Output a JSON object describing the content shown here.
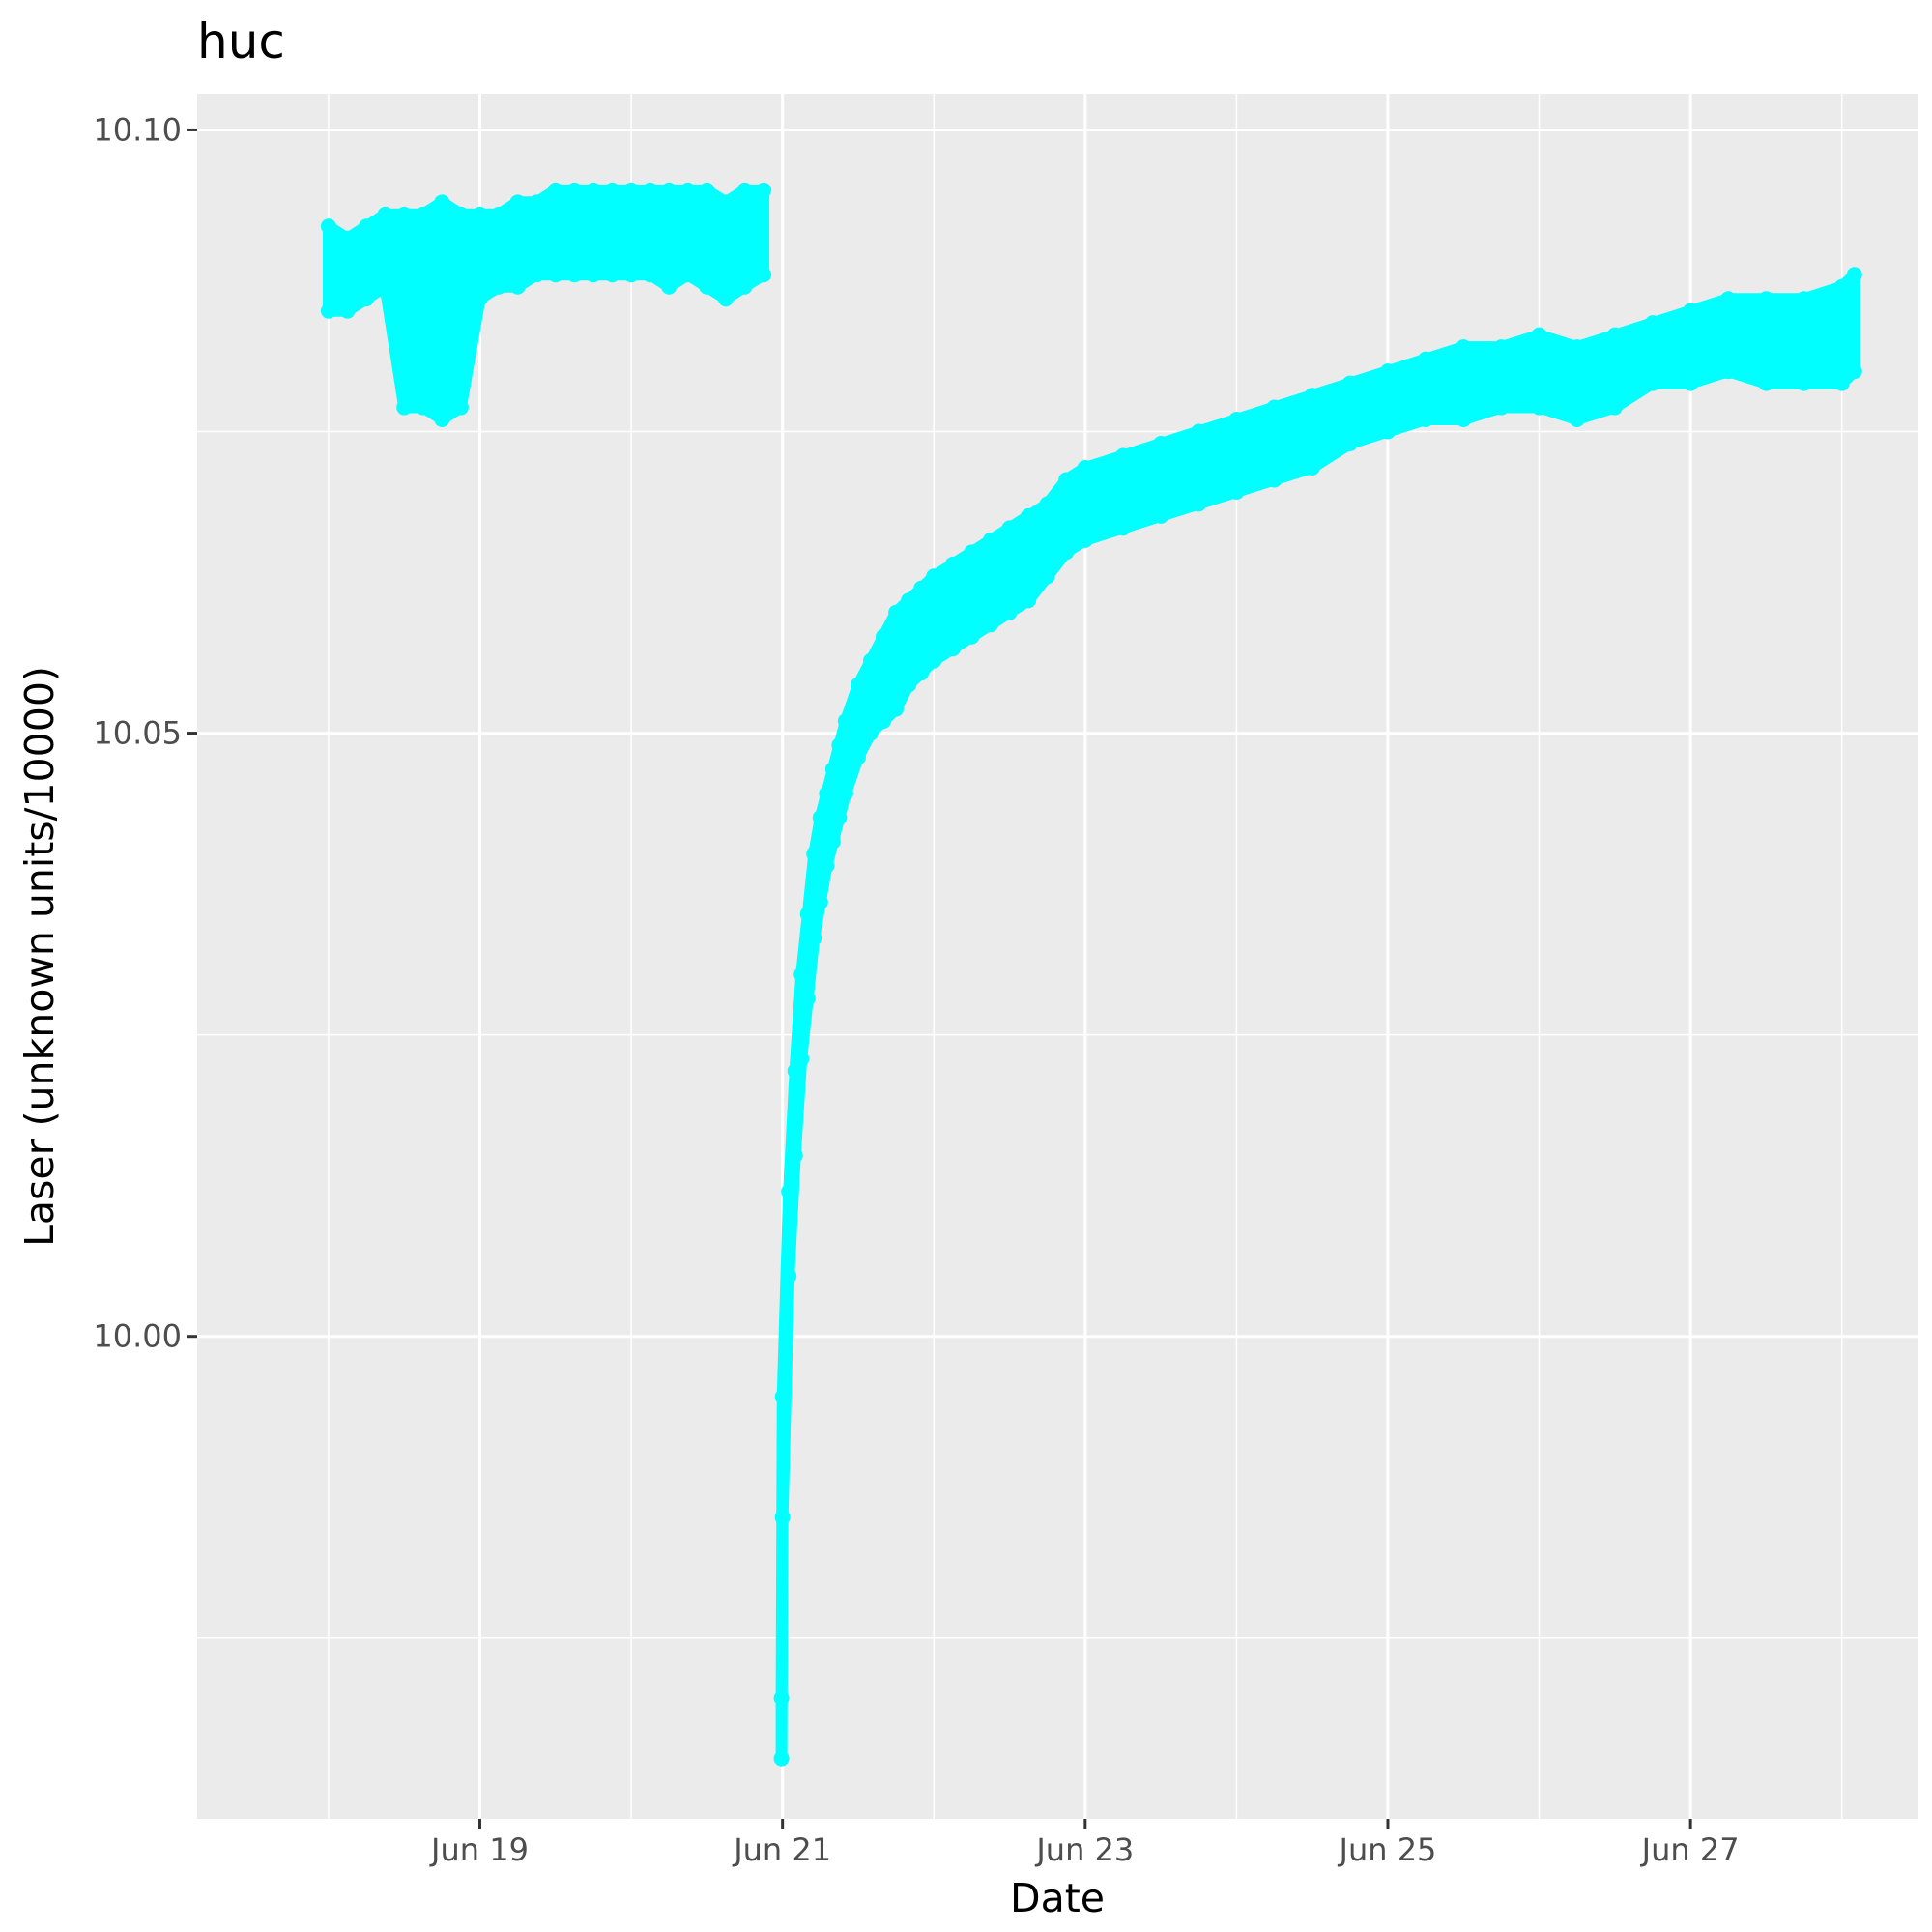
{
  "chart_data": {
    "type": "scatter",
    "title": "huc",
    "xlabel": "Date",
    "ylabel": "Laser (unknown units/10000)",
    "x_scale": "date",
    "xlim": [
      "2023-06-17 03:10",
      "2023-06-28 12:00"
    ],
    "ylim": [
      9.96,
      10.103
    ],
    "x_ticks": [
      "Jun 19",
      "Jun 21",
      "Jun 23",
      "Jun 25",
      "Jun 27"
    ],
    "x_tick_values": [
      "2023-06-19",
      "2023-06-21",
      "2023-06-23",
      "2023-06-25",
      "2023-06-27"
    ],
    "y_ticks": [
      "10.00",
      "10.05",
      "10.10"
    ],
    "y_tick_values": [
      10.0,
      10.05,
      10.1
    ],
    "grid": true,
    "legend": "none",
    "point_color": "#00FFFF",
    "panel_background": "#EBEBEB",
    "series": [
      {
        "segments": [
          {
            "x": [
              "2023-06-18 00:00",
              "2023-06-18 03:00",
              "2023-06-18 06:00",
              "2023-06-18 09:00",
              "2023-06-18 12:00",
              "2023-06-18 15:00",
              "2023-06-18 18:00",
              "2023-06-18 21:00",
              "2023-06-19 00:00",
              "2023-06-19 03:00",
              "2023-06-19 06:00",
              "2023-06-19 09:00",
              "2023-06-19 12:00",
              "2023-06-19 15:00",
              "2023-06-19 18:00",
              "2023-06-19 21:00",
              "2023-06-20 00:00",
              "2023-06-20 03:00",
              "2023-06-20 06:00",
              "2023-06-20 09:00",
              "2023-06-20 12:00",
              "2023-06-20 15:00",
              "2023-06-20 18:00",
              "2023-06-20 21:00"
            ],
            "y_low": [
              10.085,
              10.085,
              10.086,
              10.087,
              10.077,
              10.077,
              10.076,
              10.077,
              10.086,
              10.087,
              10.087,
              10.088,
              10.088,
              10.088,
              10.088,
              10.088,
              10.088,
              10.088,
              10.087,
              10.088,
              10.087,
              10.086,
              10.087,
              10.088
            ],
            "y_high": [
              10.092,
              10.091,
              10.092,
              10.093,
              10.093,
              10.093,
              10.094,
              10.093,
              10.093,
              10.093,
              10.094,
              10.094,
              10.095,
              10.095,
              10.095,
              10.095,
              10.095,
              10.095,
              10.095,
              10.095,
              10.095,
              10.094,
              10.095,
              10.095
            ]
          },
          {
            "x": [
              "2023-06-20 23:50",
              "2023-06-21 00:00",
              "2023-06-21 01:00",
              "2023-06-21 02:00",
              "2023-06-21 03:00",
              "2023-06-21 04:00",
              "2023-06-21 05:00",
              "2023-06-21 06:00",
              "2023-06-21 07:00",
              "2023-06-21 08:00",
              "2023-06-21 09:00",
              "2023-06-21 10:00",
              "2023-06-21 12:00",
              "2023-06-21 14:00",
              "2023-06-21 16:00",
              "2023-06-21 18:00",
              "2023-06-21 20:00",
              "2023-06-21 22:00",
              "2023-06-22 00:00",
              "2023-06-22 03:00",
              "2023-06-22 06:00",
              "2023-06-22 09:00",
              "2023-06-22 12:00",
              "2023-06-22 15:00",
              "2023-06-22 18:00",
              "2023-06-22 21:00",
              "2023-06-23 00:00",
              "2023-06-23 06:00",
              "2023-06-23 12:00",
              "2023-06-23 18:00",
              "2023-06-24 00:00",
              "2023-06-24 06:00",
              "2023-06-24 12:00",
              "2023-06-24 18:00",
              "2023-06-25 00:00",
              "2023-06-25 06:00",
              "2023-06-25 12:00",
              "2023-06-25 18:00",
              "2023-06-26 00:00",
              "2023-06-26 06:00",
              "2023-06-26 12:00",
              "2023-06-26 18:00",
              "2023-06-27 00:00",
              "2023-06-27 06:00",
              "2023-06-27 12:00",
              "2023-06-27 18:00",
              "2023-06-28 00:00",
              "2023-06-28 02:00"
            ],
            "y_low": [
              9.965,
              9.985,
              10.005,
              10.015,
              10.023,
              10.028,
              10.033,
              10.036,
              10.039,
              10.041,
              10.043,
              10.045,
              10.048,
              10.05,
              10.051,
              10.052,
              10.054,
              10.055,
              10.056,
              10.057,
              10.058,
              10.059,
              10.06,
              10.061,
              10.063,
              10.065,
              10.066,
              10.067,
              10.068,
              10.069,
              10.07,
              10.071,
              10.072,
              10.074,
              10.075,
              10.076,
              10.076,
              10.077,
              10.077,
              10.076,
              10.077,
              10.079,
              10.079,
              10.08,
              10.079,
              10.079,
              10.079,
              10.08
            ],
            "y_high": [
              9.97,
              9.995,
              10.012,
              10.022,
              10.03,
              10.035,
              10.04,
              10.043,
              10.045,
              10.047,
              10.049,
              10.051,
              10.054,
              10.056,
              10.058,
              10.06,
              10.061,
              10.062,
              10.063,
              10.064,
              10.065,
              10.066,
              10.067,
              10.068,
              10.069,
              10.071,
              10.072,
              10.073,
              10.074,
              10.075,
              10.076,
              10.077,
              10.078,
              10.079,
              10.08,
              10.081,
              10.082,
              10.082,
              10.083,
              10.082,
              10.083,
              10.084,
              10.085,
              10.086,
              10.086,
              10.086,
              10.087,
              10.088
            ]
          }
        ]
      }
    ]
  }
}
